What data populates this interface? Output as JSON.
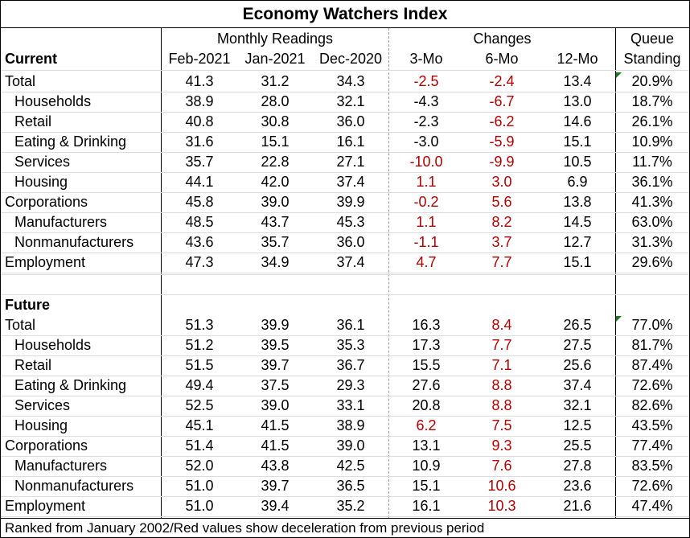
{
  "title": "Economy Watchers Index",
  "groups": {
    "monthly": "Monthly Readings",
    "changes": "Changes",
    "queue_line1": "Queue",
    "queue_line2": "Standing"
  },
  "columns": [
    "Feb-2021",
    "Jan-2021",
    "Dec-2020",
    "3-Mo",
    "6-Mo",
    "12-Mo"
  ],
  "colors": {
    "deceleration": "#b00000",
    "comment_marker": "#1a7a1a"
  },
  "sections": [
    {
      "heading": "Current",
      "rows": [
        {
          "label": "Total",
          "indent": false,
          "feb": "41.3",
          "jan": "31.2",
          "dec": "34.3",
          "m3": "-2.5",
          "m3_red": true,
          "m6": "-2.4",
          "m6_red": true,
          "m12": "13.4",
          "m12_red": false,
          "queue": "20.9%",
          "marker": true
        },
        {
          "label": "Households",
          "indent": true,
          "feb": "38.9",
          "jan": "28.0",
          "dec": "32.1",
          "m3": "-4.3",
          "m3_red": false,
          "m6": "-6.7",
          "m6_red": true,
          "m12": "13.0",
          "m12_red": false,
          "queue": "18.7%",
          "marker": false
        },
        {
          "label": "Retail",
          "indent": true,
          "feb": "40.8",
          "jan": "30.8",
          "dec": "36.0",
          "m3": "-2.3",
          "m3_red": false,
          "m6": "-6.2",
          "m6_red": true,
          "m12": "14.6",
          "m12_red": false,
          "queue": "26.1%",
          "marker": false
        },
        {
          "label": "Eating & Drinking",
          "indent": true,
          "feb": "31.6",
          "jan": "15.1",
          "dec": "16.1",
          "m3": "-3.0",
          "m3_red": false,
          "m6": "-5.9",
          "m6_red": true,
          "m12": "15.1",
          "m12_red": false,
          "queue": "10.9%",
          "marker": false
        },
        {
          "label": "Services",
          "indent": true,
          "feb": "35.7",
          "jan": "22.8",
          "dec": "27.1",
          "m3": "-10.0",
          "m3_red": true,
          "m6": "-9.9",
          "m6_red": true,
          "m12": "10.5",
          "m12_red": false,
          "queue": "11.7%",
          "marker": false
        },
        {
          "label": "Housing",
          "indent": true,
          "feb": "44.1",
          "jan": "42.0",
          "dec": "37.4",
          "m3": "1.1",
          "m3_red": true,
          "m6": "3.0",
          "m6_red": true,
          "m12": "6.9",
          "m12_red": false,
          "queue": "36.1%",
          "marker": false
        },
        {
          "label": "Corporations",
          "indent": false,
          "feb": "45.8",
          "jan": "39.0",
          "dec": "39.9",
          "m3": "-0.2",
          "m3_red": true,
          "m6": "5.6",
          "m6_red": true,
          "m12": "13.8",
          "m12_red": false,
          "queue": "41.3%",
          "marker": false
        },
        {
          "label": "Manufacturers",
          "indent": true,
          "feb": "48.5",
          "jan": "43.7",
          "dec": "45.3",
          "m3": "1.1",
          "m3_red": true,
          "m6": "8.2",
          "m6_red": true,
          "m12": "14.5",
          "m12_red": false,
          "queue": "63.0%",
          "marker": false
        },
        {
          "label": "Nonmanufacturers",
          "indent": true,
          "feb": "43.6",
          "jan": "35.7",
          "dec": "36.0",
          "m3": "-1.1",
          "m3_red": true,
          "m6": "3.7",
          "m6_red": true,
          "m12": "12.7",
          "m12_red": false,
          "queue": "31.3%",
          "marker": false
        },
        {
          "label": "Employment",
          "indent": false,
          "feb": "47.3",
          "jan": "34.9",
          "dec": "37.4",
          "m3": "4.7",
          "m3_red": true,
          "m6": "7.7",
          "m6_red": true,
          "m12": "15.1",
          "m12_red": false,
          "queue": "29.6%",
          "marker": false
        }
      ]
    },
    {
      "heading": "Future",
      "rows": [
        {
          "label": "Total",
          "indent": false,
          "feb": "51.3",
          "jan": "39.9",
          "dec": "36.1",
          "m3": "16.3",
          "m3_red": false,
          "m6": "8.4",
          "m6_red": true,
          "m12": "26.5",
          "m12_red": false,
          "queue": "77.0%",
          "marker": true
        },
        {
          "label": "Households",
          "indent": true,
          "feb": "51.2",
          "jan": "39.5",
          "dec": "35.3",
          "m3": "17.3",
          "m3_red": false,
          "m6": "7.7",
          "m6_red": true,
          "m12": "27.5",
          "m12_red": false,
          "queue": "81.7%",
          "marker": false
        },
        {
          "label": "Retail",
          "indent": true,
          "feb": "51.5",
          "jan": "39.7",
          "dec": "36.7",
          "m3": "15.5",
          "m3_red": false,
          "m6": "7.1",
          "m6_red": true,
          "m12": "25.6",
          "m12_red": false,
          "queue": "87.4%",
          "marker": false
        },
        {
          "label": "Eating & Drinking",
          "indent": true,
          "feb": "49.4",
          "jan": "37.5",
          "dec": "29.3",
          "m3": "27.6",
          "m3_red": false,
          "m6": "8.8",
          "m6_red": true,
          "m12": "37.4",
          "m12_red": false,
          "queue": "72.6%",
          "marker": false
        },
        {
          "label": "Services",
          "indent": true,
          "feb": "52.5",
          "jan": "39.0",
          "dec": "33.1",
          "m3": "20.8",
          "m3_red": false,
          "m6": "8.8",
          "m6_red": true,
          "m12": "32.1",
          "m12_red": false,
          "queue": "82.6%",
          "marker": false
        },
        {
          "label": "Housing",
          "indent": true,
          "feb": "45.1",
          "jan": "41.5",
          "dec": "38.9",
          "m3": "6.2",
          "m3_red": true,
          "m6": "7.5",
          "m6_red": true,
          "m12": "12.5",
          "m12_red": false,
          "queue": "43.5%",
          "marker": false
        },
        {
          "label": "Corporations",
          "indent": false,
          "feb": "51.4",
          "jan": "41.5",
          "dec": "39.0",
          "m3": "13.1",
          "m3_red": false,
          "m6": "9.3",
          "m6_red": true,
          "m12": "25.5",
          "m12_red": false,
          "queue": "77.4%",
          "marker": false
        },
        {
          "label": "Manufacturers",
          "indent": true,
          "feb": "52.0",
          "jan": "43.8",
          "dec": "42.5",
          "m3": "10.9",
          "m3_red": false,
          "m6": "7.6",
          "m6_red": true,
          "m12": "27.8",
          "m12_red": false,
          "queue": "83.5%",
          "marker": false
        },
        {
          "label": "Nonmanufacturers",
          "indent": true,
          "feb": "51.0",
          "jan": "39.7",
          "dec": "36.5",
          "m3": "15.1",
          "m3_red": false,
          "m6": "10.6",
          "m6_red": true,
          "m12": "23.6",
          "m12_red": false,
          "queue": "72.6%",
          "marker": false
        },
        {
          "label": "Employment",
          "indent": false,
          "feb": "51.0",
          "jan": "39.4",
          "dec": "35.2",
          "m3": "16.1",
          "m3_red": false,
          "m6": "10.3",
          "m6_red": true,
          "m12": "21.6",
          "m12_red": false,
          "queue": "47.4%",
          "marker": false
        }
      ]
    }
  ],
  "footer": "Ranked from January 2002/Red values show deceleration from previous period"
}
